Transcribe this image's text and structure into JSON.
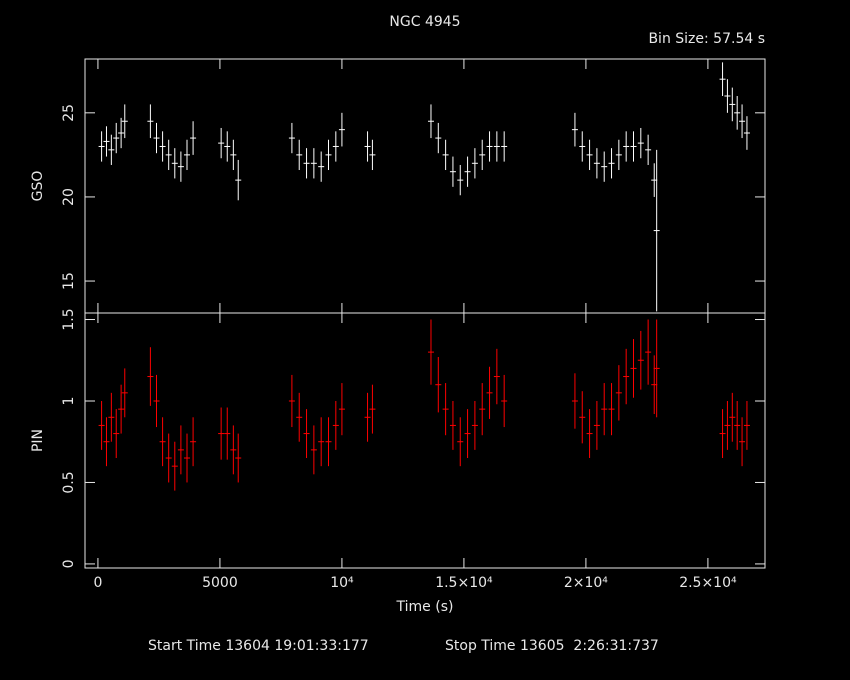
{
  "chart_data": [
    {
      "type": "errorbar",
      "title": "NGC 4945",
      "subtitle": "Bin Size: 57.54 s",
      "ylabel": "GSO",
      "color": "#ffffff",
      "xlim": [
        -530,
        27340
      ],
      "ylim": [
        13.1,
        28.2
      ],
      "yticks": [
        15,
        20,
        25
      ],
      "x": [
        150,
        350,
        550,
        750,
        950,
        1100,
        2150,
        2400,
        2650,
        2900,
        3150,
        3400,
        3650,
        3900,
        5050,
        5300,
        5550,
        5750,
        7950,
        8250,
        8550,
        8850,
        9150,
        9450,
        9750,
        10000,
        11050,
        11250,
        13650,
        13950,
        14250,
        14550,
        14850,
        15150,
        15450,
        15750,
        16050,
        16350,
        16650,
        19550,
        19850,
        20150,
        20450,
        20750,
        21050,
        21350,
        21650,
        21950,
        22250,
        22550,
        22800,
        22900,
        25600,
        25800,
        26000,
        26200,
        26400,
        26600
      ],
      "values": [
        23.0,
        23.3,
        22.8,
        23.5,
        23.8,
        24.5,
        24.5,
        23.5,
        23.0,
        22.5,
        22.0,
        21.8,
        22.5,
        23.5,
        23.2,
        23.0,
        22.5,
        21.0,
        23.5,
        22.5,
        22.0,
        22.0,
        21.8,
        22.5,
        23.0,
        24.0,
        23.0,
        22.5,
        24.5,
        23.5,
        22.5,
        21.5,
        21.0,
        21.5,
        22.0,
        22.5,
        23.0,
        23.0,
        23.0,
        24.0,
        23.0,
        22.5,
        22.0,
        21.8,
        22.0,
        22.5,
        23.0,
        23.0,
        23.2,
        22.8,
        21.0,
        18.0,
        27.0,
        26.0,
        25.5,
        25.0,
        24.5,
        23.8
      ],
      "errors": [
        0.9,
        0.9,
        0.9,
        0.9,
        0.9,
        1.0,
        1.0,
        0.9,
        0.9,
        0.9,
        0.9,
        0.9,
        0.9,
        1.0,
        0.9,
        0.9,
        0.9,
        1.2,
        0.9,
        0.9,
        0.9,
        0.9,
        0.9,
        0.9,
        0.9,
        1.0,
        0.9,
        0.9,
        1.0,
        0.9,
        0.9,
        0.9,
        0.9,
        0.9,
        0.9,
        0.9,
        0.9,
        0.9,
        0.9,
        1.0,
        0.9,
        0.9,
        0.9,
        0.9,
        0.9,
        0.9,
        0.9,
        0.9,
        0.9,
        0.9,
        1.0,
        4.8,
        1.0,
        1.0,
        1.0,
        1.0,
        1.0,
        1.0
      ]
    },
    {
      "type": "errorbar",
      "xlabel": "Time (s)",
      "ylabel": "PIN",
      "color": "#ff0000",
      "xlim": [
        -530,
        27340
      ],
      "ylim": [
        -0.025,
        1.54
      ],
      "yticks": [
        0,
        0.5,
        1,
        1.5
      ],
      "xticks": [
        0,
        5000,
        {
          "value": 10000,
          "label": "10⁴"
        },
        {
          "value": 15000,
          "label": "1.5×10⁴"
        },
        {
          "value": 20000,
          "label": "2×10⁴"
        },
        {
          "value": 25000,
          "label": "2.5×10⁴"
        }
      ],
      "x": [
        150,
        350,
        550,
        750,
        950,
        1100,
        2150,
        2400,
        2650,
        2900,
        3150,
        3400,
        3650,
        3900,
        5050,
        5300,
        5550,
        5750,
        7950,
        8250,
        8550,
        8850,
        9150,
        9450,
        9750,
        10000,
        11050,
        11250,
        13650,
        13950,
        14250,
        14550,
        14850,
        15150,
        15450,
        15750,
        16050,
        16350,
        16650,
        19550,
        19850,
        20150,
        20450,
        20750,
        21050,
        21350,
        21650,
        21950,
        22250,
        22550,
        22800,
        22900,
        25600,
        25800,
        26000,
        26200,
        26400,
        26600
      ],
      "values": [
        0.85,
        0.75,
        0.9,
        0.8,
        0.95,
        1.05,
        1.15,
        1.0,
        0.75,
        0.65,
        0.6,
        0.7,
        0.65,
        0.75,
        0.8,
        0.8,
        0.7,
        0.65,
        1.0,
        0.9,
        0.8,
        0.7,
        0.75,
        0.75,
        0.85,
        0.95,
        0.9,
        0.95,
        1.3,
        1.1,
        0.95,
        0.85,
        0.75,
        0.8,
        0.85,
        0.95,
        1.05,
        1.15,
        1.0,
        1.0,
        0.9,
        0.8,
        0.85,
        0.95,
        0.95,
        1.05,
        1.15,
        1.2,
        1.25,
        1.3,
        1.1,
        1.2,
        0.8,
        0.85,
        0.9,
        0.85,
        0.75,
        0.85
      ],
      "errors": [
        0.15,
        0.15,
        0.15,
        0.15,
        0.15,
        0.15,
        0.18,
        0.16,
        0.15,
        0.15,
        0.15,
        0.15,
        0.15,
        0.15,
        0.16,
        0.16,
        0.15,
        0.15,
        0.16,
        0.15,
        0.15,
        0.15,
        0.15,
        0.15,
        0.15,
        0.16,
        0.15,
        0.15,
        0.2,
        0.17,
        0.16,
        0.15,
        0.15,
        0.15,
        0.15,
        0.16,
        0.16,
        0.17,
        0.16,
        0.17,
        0.16,
        0.15,
        0.15,
        0.16,
        0.16,
        0.17,
        0.17,
        0.18,
        0.18,
        0.2,
        0.18,
        0.3,
        0.15,
        0.15,
        0.15,
        0.15,
        0.15,
        0.15
      ]
    }
  ],
  "footer": {
    "start": "Start Time 13604 19:01:33:177",
    "stop": "Stop Time 13605  2:26:31:737"
  }
}
